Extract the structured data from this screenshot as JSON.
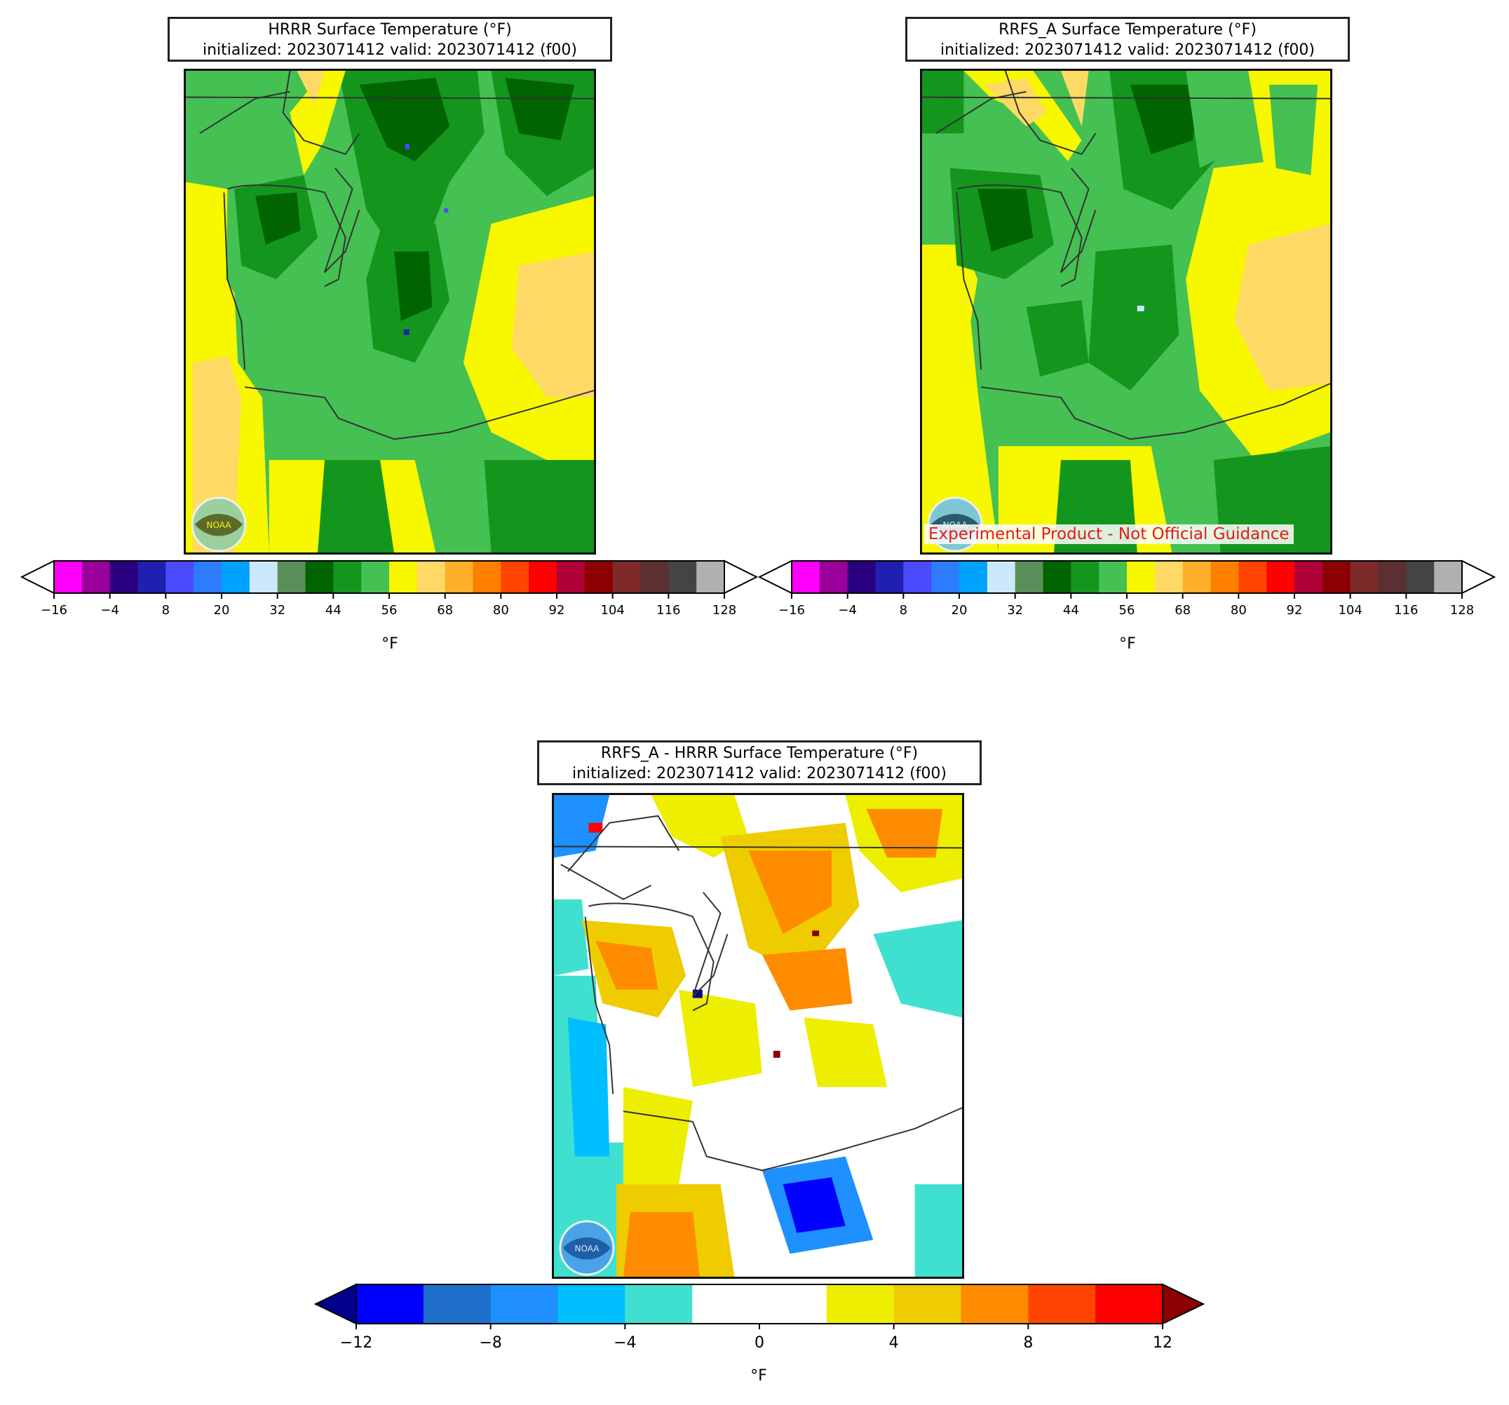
{
  "panels": [
    {
      "id": "hrrr",
      "title_line1": "HRRR Surface Temperature (°F)",
      "title_line2": "initialized: 2023071412 valid: 2023071412 (f00)",
      "colorbar_unit": "°F"
    },
    {
      "id": "rrfs",
      "title_line1": "RRFS_A Surface Temperature (°F)",
      "title_line2": "initialized: 2023071412 valid: 2023071412 (f00)",
      "colorbar_unit": "°F",
      "overlay_text": "Experimental Product - Not Official Guidance"
    },
    {
      "id": "diff",
      "title_line1": "RRFS_A - HRRR Surface Temperature (°F)",
      "title_line2": "initialized: 2023071412 valid: 2023071412 (f00)",
      "colorbar_unit": "°F"
    }
  ],
  "logo_text": "NOAA",
  "temp_colorbar": {
    "ticks": [
      "−16",
      "−4",
      "8",
      "20",
      "32",
      "44",
      "56",
      "68",
      "80",
      "92",
      "104",
      "116",
      "128"
    ],
    "colors": [
      "#ff00ff",
      "#990099",
      "#2b0080",
      "#2020b0",
      "#4a4aff",
      "#2d7bff",
      "#00a2ff",
      "#cce8fb",
      "#5a8f5a",
      "#006400",
      "#14961e",
      "#45c052",
      "#f7f700",
      "#ffd966",
      "#ffae2a",
      "#ff7f00",
      "#ff4500",
      "#ff0000",
      "#b00038",
      "#8b0000",
      "#7d2a2a",
      "#5a3030",
      "#444444",
      "#b0b0b0"
    ],
    "under_color": "#ffffff",
    "over_color": "#ffffff"
  },
  "diff_colorbar": {
    "ticks": [
      "−12",
      "−8",
      "−4",
      "0",
      "4",
      "8",
      "12"
    ],
    "colors": [
      "#0000ff",
      "#1e6fcc",
      "#1e90ff",
      "#00bfff",
      "#40e0d0",
      "#ffffff",
      "#ffffff",
      "#eeee00",
      "#eecc00",
      "#ff8c00",
      "#ff4500",
      "#ff0000"
    ],
    "under_color": "#00008b",
    "over_color": "#8b0000"
  }
}
